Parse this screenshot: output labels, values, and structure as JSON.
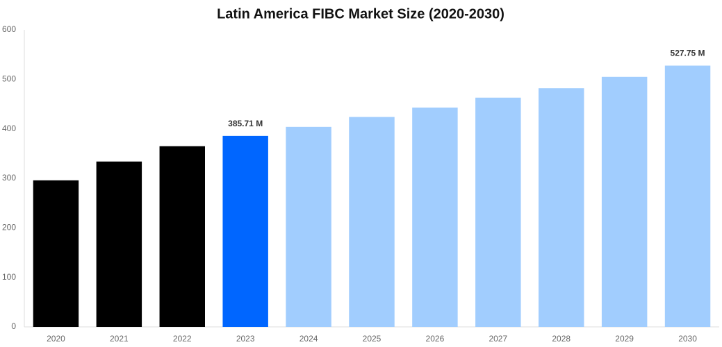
{
  "chart_data": {
    "type": "bar",
    "title": "Latin America FIBC Market Size (2020-2030)",
    "categories": [
      "2020",
      "2021",
      "2022",
      "2023",
      "2024",
      "2025",
      "2026",
      "2027",
      "2028",
      "2029",
      "2030"
    ],
    "values": [
      296,
      334,
      365,
      385.71,
      404,
      424,
      443,
      463,
      482,
      505,
      527.75
    ],
    "value_labels": [
      null,
      null,
      null,
      "385.71 M",
      null,
      null,
      null,
      null,
      null,
      null,
      "527.75 M"
    ],
    "colors": [
      "#000000",
      "#000000",
      "#000000",
      "#0066ff",
      "#a1cdfe",
      "#a1cdfe",
      "#a1cdfe",
      "#a1cdfe",
      "#a1cdfe",
      "#a1cdfe",
      "#a1cdfe"
    ],
    "ylim": [
      0,
      600
    ],
    "yticks": [
      0,
      100,
      200,
      300,
      400,
      500,
      600
    ],
    "grid": false
  }
}
